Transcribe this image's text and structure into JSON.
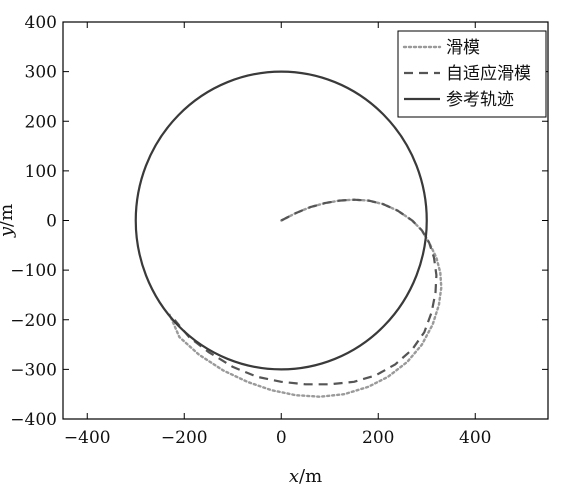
{
  "chart_data": {
    "type": "line",
    "title": "",
    "xlabel_var": "x",
    "xlabel_unit": "/m",
    "ylabel_var": "y",
    "ylabel_unit": "/m",
    "xlim": [
      -450,
      550
    ],
    "ylim": [
      -400,
      400
    ],
    "xticks": [
      -400,
      -200,
      0,
      200,
      400
    ],
    "yticks": [
      -400,
      -300,
      -200,
      -100,
      0,
      100,
      200,
      300,
      400
    ],
    "grid": false,
    "legend_position": "top-right",
    "series": [
      {
        "name": "滑模",
        "style": "dotted",
        "color": "#9a9a9a",
        "x": [
          0,
          30,
          60,
          90,
          120,
          150,
          180,
          210,
          240,
          270,
          290,
          305,
          320,
          328,
          330,
          325,
          312,
          290,
          260,
          220,
          180,
          130,
          80,
          30,
          -20,
          -70,
          -120,
          -170,
          -210,
          -230
        ],
        "y": [
          0,
          15,
          27,
          35,
          40,
          42,
          40,
          33,
          20,
          0,
          -20,
          -45,
          -75,
          -105,
          -135,
          -170,
          -210,
          -250,
          -285,
          -315,
          -335,
          -350,
          -355,
          -352,
          -342,
          -325,
          -302,
          -270,
          -235,
          -190
        ]
      },
      {
        "name": "自适应滑模",
        "style": "dashed",
        "color": "#555555",
        "x": [
          0,
          30,
          60,
          90,
          120,
          150,
          180,
          210,
          240,
          270,
          290,
          305,
          315,
          320,
          318,
          310,
          295,
          270,
          235,
          195,
          150,
          100,
          50,
          0,
          -50,
          -100,
          -150,
          -190,
          -220
        ],
        "y": [
          0,
          15,
          27,
          35,
          40,
          42,
          40,
          33,
          20,
          0,
          -20,
          -45,
          -75,
          -110,
          -145,
          -185,
          -225,
          -260,
          -290,
          -312,
          -325,
          -330,
          -330,
          -325,
          -315,
          -295,
          -265,
          -235,
          -200
        ]
      },
      {
        "name": "参考轨迹",
        "style": "solid",
        "color": "#3a3a3a",
        "shape": "circle",
        "radius": 300,
        "center": [
          0,
          0
        ]
      }
    ]
  }
}
